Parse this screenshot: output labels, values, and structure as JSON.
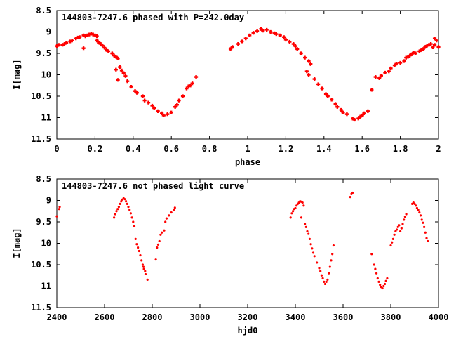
{
  "chart_data": [
    {
      "type": "scatter",
      "title": "144803-7247.6 phased with P=242.0day",
      "xlabel": "phase",
      "ylabel": "I[mag]",
      "xlim": [
        0,
        2
      ],
      "ylim": [
        11.5,
        8.5
      ],
      "y_inverted": true,
      "grid": false,
      "marker_color": "#ff0000",
      "marker_size": "large",
      "x_ticks": [
        "0",
        "0.2",
        "0.4",
        "0.6",
        "0.8",
        "1",
        "1.2",
        "1.4",
        "1.6",
        "1.8",
        "2"
      ],
      "y_ticks": [
        "8.5",
        "9",
        "9.5",
        "10",
        "10.5",
        "11",
        "11.5"
      ],
      "series": [
        {
          "points": [
            [
              0.0,
              9.33
            ],
            [
              0.01,
              9.3
            ],
            [
              0.03,
              9.3
            ],
            [
              0.04,
              9.28
            ],
            [
              0.05,
              9.25
            ],
            [
              0.07,
              9.22
            ],
            [
              0.08,
              9.2
            ],
            [
              0.1,
              9.15
            ],
            [
              0.11,
              9.13
            ],
            [
              0.12,
              9.12
            ],
            [
              0.14,
              9.08
            ],
            [
              0.15,
              9.1
            ],
            [
              0.16,
              9.08
            ],
            [
              0.17,
              9.06
            ],
            [
              0.18,
              9.04
            ],
            [
              0.19,
              9.06
            ],
            [
              0.2,
              9.08
            ],
            [
              0.21,
              9.1
            ],
            [
              0.14,
              9.38
            ],
            [
              0.21,
              9.2
            ],
            [
              0.22,
              9.25
            ],
            [
              0.23,
              9.28
            ],
            [
              0.24,
              9.32
            ],
            [
              0.25,
              9.37
            ],
            [
              0.26,
              9.42
            ],
            [
              0.27,
              9.45
            ],
            [
              0.29,
              9.5
            ],
            [
              0.3,
              9.55
            ],
            [
              0.31,
              9.58
            ],
            [
              0.32,
              9.62
            ],
            [
              0.31,
              9.88
            ],
            [
              0.33,
              9.82
            ],
            [
              0.34,
              9.9
            ],
            [
              0.35,
              9.96
            ],
            [
              0.36,
              10.03
            ],
            [
              0.32,
              10.12
            ],
            [
              0.37,
              10.15
            ],
            [
              0.39,
              10.28
            ],
            [
              0.41,
              10.38
            ],
            [
              0.42,
              10.42
            ],
            [
              0.45,
              10.5
            ],
            [
              0.46,
              10.6
            ],
            [
              0.48,
              10.65
            ],
            [
              0.5,
              10.72
            ],
            [
              0.51,
              10.78
            ],
            [
              0.53,
              10.85
            ],
            [
              0.55,
              10.9
            ],
            [
              0.56,
              10.95
            ],
            [
              0.58,
              10.92
            ],
            [
              0.6,
              10.88
            ],
            [
              0.62,
              10.75
            ],
            [
              0.63,
              10.7
            ],
            [
              0.64,
              10.6
            ],
            [
              0.66,
              10.5
            ],
            [
              0.68,
              10.32
            ],
            [
              0.69,
              10.27
            ],
            [
              0.7,
              10.25
            ],
            [
              0.71,
              10.2
            ],
            [
              0.73,
              10.05
            ],
            [
              0.91,
              9.4
            ],
            [
              0.92,
              9.35
            ],
            [
              0.95,
              9.28
            ],
            [
              0.97,
              9.22
            ],
            [
              0.99,
              9.15
            ],
            [
              1.01,
              9.08
            ],
            [
              1.03,
              9.02
            ],
            [
              1.05,
              8.98
            ],
            [
              1.07,
              8.93
            ],
            [
              1.08,
              8.97
            ],
            [
              1.1,
              8.95
            ],
            [
              1.12,
              9.0
            ],
            [
              1.14,
              9.03
            ],
            [
              1.15,
              9.05
            ],
            [
              1.17,
              9.08
            ],
            [
              1.19,
              9.12
            ],
            [
              1.2,
              9.18
            ],
            [
              1.22,
              9.23
            ],
            [
              1.24,
              9.28
            ],
            [
              1.25,
              9.33
            ],
            [
              1.26,
              9.4
            ],
            [
              1.28,
              9.5
            ],
            [
              1.3,
              9.6
            ],
            [
              1.32,
              9.68
            ],
            [
              1.33,
              9.75
            ],
            [
              1.31,
              9.92
            ],
            [
              1.32,
              10.0
            ],
            [
              1.35,
              10.1
            ],
            [
              1.37,
              10.22
            ],
            [
              1.39,
              10.32
            ],
            [
              1.41,
              10.45
            ],
            [
              1.42,
              10.5
            ],
            [
              1.44,
              10.58
            ],
            [
              1.46,
              10.68
            ],
            [
              1.47,
              10.75
            ],
            [
              1.49,
              10.82
            ],
            [
              1.5,
              10.88
            ],
            [
              1.52,
              10.92
            ],
            [
              1.55,
              11.02
            ],
            [
              1.56,
              11.05
            ],
            [
              1.58,
              11.02
            ],
            [
              1.59,
              10.98
            ],
            [
              1.6,
              10.95
            ],
            [
              1.61,
              10.9
            ],
            [
              1.63,
              10.85
            ],
            [
              1.65,
              10.35
            ],
            [
              1.67,
              10.05
            ],
            [
              1.69,
              10.08
            ],
            [
              1.7,
              10.02
            ],
            [
              1.72,
              9.95
            ],
            [
              1.74,
              9.92
            ],
            [
              1.75,
              9.85
            ],
            [
              1.77,
              9.78
            ],
            [
              1.78,
              9.74
            ],
            [
              1.8,
              9.72
            ],
            [
              1.82,
              9.68
            ],
            [
              1.83,
              9.6
            ],
            [
              1.84,
              9.58
            ],
            [
              1.85,
              9.55
            ],
            [
              1.86,
              9.52
            ],
            [
              1.87,
              9.48
            ],
            [
              1.88,
              9.5
            ],
            [
              1.9,
              9.45
            ],
            [
              1.91,
              9.42
            ],
            [
              1.92,
              9.4
            ],
            [
              1.93,
              9.35
            ],
            [
              1.94,
              9.32
            ],
            [
              1.95,
              9.3
            ],
            [
              1.96,
              9.28
            ],
            [
              1.97,
              9.36
            ],
            [
              1.98,
              9.3
            ],
            [
              1.99,
              9.2
            ],
            [
              1.98,
              9.15
            ],
            [
              2.0,
              9.35
            ]
          ]
        }
      ]
    },
    {
      "type": "scatter",
      "title": "144803-7247.6 not phased light curve",
      "xlabel": "hjd0",
      "ylabel": "I[mag]",
      "xlim": [
        2400,
        4000
      ],
      "ylim": [
        11.5,
        8.5
      ],
      "y_inverted": true,
      "grid": false,
      "marker_color": "#ff0000",
      "marker_size": "small",
      "x_ticks": [
        "2400",
        "2600",
        "2800",
        "3000",
        "3200",
        "3400",
        "3600",
        "3800",
        "4000"
      ],
      "y_ticks": [
        "8.5",
        "9",
        "9.5",
        "10",
        "10.5",
        "11",
        "11.5"
      ],
      "series": [
        {
          "points": [
            [
              2400,
              9.37
            ],
            [
              2410,
              9.2
            ],
            [
              2412,
              9.15
            ],
            [
              2640,
              9.4
            ],
            [
              2645,
              9.32
            ],
            [
              2650,
              9.25
            ],
            [
              2655,
              9.2
            ],
            [
              2660,
              9.15
            ],
            [
              2665,
              9.08
            ],
            [
              2670,
              9.02
            ],
            [
              2675,
              8.98
            ],
            [
              2680,
              8.95
            ],
            [
              2685,
              8.97
            ],
            [
              2690,
              9.02
            ],
            [
              2695,
              9.08
            ],
            [
              2700,
              9.15
            ],
            [
              2705,
              9.22
            ],
            [
              2710,
              9.3
            ],
            [
              2715,
              9.4
            ],
            [
              2720,
              9.5
            ],
            [
              2725,
              9.6
            ],
            [
              2730,
              9.9
            ],
            [
              2735,
              10.02
            ],
            [
              2740,
              10.1
            ],
            [
              2745,
              10.18
            ],
            [
              2750,
              10.28
            ],
            [
              2755,
              10.4
            ],
            [
              2760,
              10.5
            ],
            [
              2763,
              10.55
            ],
            [
              2765,
              10.6
            ],
            [
              2770,
              10.65
            ],
            [
              2772,
              10.72
            ],
            [
              2780,
              10.85
            ],
            [
              2815,
              10.38
            ],
            [
              2820,
              10.1
            ],
            [
              2825,
              10.03
            ],
            [
              2830,
              9.95
            ],
            [
              2835,
              9.8
            ],
            [
              2840,
              9.75
            ],
            [
              2850,
              9.7
            ],
            [
              2855,
              9.5
            ],
            [
              2860,
              9.42
            ],
            [
              2870,
              9.35
            ],
            [
              2880,
              9.28
            ],
            [
              2890,
              9.22
            ],
            [
              2895,
              9.17
            ],
            [
              3380,
              9.4
            ],
            [
              3385,
              9.3
            ],
            [
              3390,
              9.25
            ],
            [
              3395,
              9.2
            ],
            [
              3400,
              9.18
            ],
            [
              3405,
              9.12
            ],
            [
              3410,
              9.08
            ],
            [
              3415,
              9.05
            ],
            [
              3420,
              9.02
            ],
            [
              3425,
              9.03
            ],
            [
              3430,
              9.05
            ],
            [
              3435,
              9.12
            ],
            [
              3425,
              9.4
            ],
            [
              3440,
              9.55
            ],
            [
              3445,
              9.62
            ],
            [
              3450,
              9.72
            ],
            [
              3455,
              9.78
            ],
            [
              3460,
              9.9
            ],
            [
              3465,
              10.02
            ],
            [
              3470,
              10.12
            ],
            [
              3475,
              10.22
            ],
            [
              3480,
              10.3
            ],
            [
              3490,
              10.45
            ],
            [
              3500,
              10.58
            ],
            [
              3505,
              10.65
            ],
            [
              3510,
              10.75
            ],
            [
              3515,
              10.82
            ],
            [
              3520,
              10.9
            ],
            [
              3525,
              10.95
            ],
            [
              3530,
              10.9
            ],
            [
              3535,
              10.85
            ],
            [
              3540,
              10.7
            ],
            [
              3545,
              10.55
            ],
            [
              3550,
              10.4
            ],
            [
              3555,
              10.25
            ],
            [
              3560,
              10.05
            ],
            [
              3630,
              8.92
            ],
            [
              3635,
              8.85
            ],
            [
              3640,
              8.82
            ],
            [
              3720,
              10.25
            ],
            [
              3730,
              10.5
            ],
            [
              3735,
              10.6
            ],
            [
              3740,
              10.7
            ],
            [
              3745,
              10.82
            ],
            [
              3750,
              10.9
            ],
            [
              3755,
              10.97
            ],
            [
              3760,
              11.02
            ],
            [
              3765,
              11.05
            ],
            [
              3770,
              11.0
            ],
            [
              3775,
              10.95
            ],
            [
              3780,
              10.88
            ],
            [
              3785,
              10.82
            ],
            [
              3800,
              10.05
            ],
            [
              3805,
              9.98
            ],
            [
              3810,
              9.9
            ],
            [
              3815,
              9.8
            ],
            [
              3820,
              9.72
            ],
            [
              3825,
              9.68
            ],
            [
              3830,
              9.62
            ],
            [
              3835,
              9.58
            ],
            [
              3840,
              9.72
            ],
            [
              3845,
              9.65
            ],
            [
              3850,
              9.55
            ],
            [
              3855,
              9.45
            ],
            [
              3860,
              9.38
            ],
            [
              3865,
              9.32
            ],
            [
              3890,
              9.08
            ],
            [
              3895,
              9.05
            ],
            [
              3900,
              9.08
            ],
            [
              3905,
              9.12
            ],
            [
              3910,
              9.18
            ],
            [
              3915,
              9.22
            ],
            [
              3920,
              9.28
            ],
            [
              3925,
              9.35
            ],
            [
              3930,
              9.45
            ],
            [
              3935,
              9.52
            ],
            [
              3940,
              9.62
            ],
            [
              3945,
              9.75
            ],
            [
              3950,
              9.88
            ],
            [
              3955,
              9.95
            ]
          ]
        }
      ]
    }
  ]
}
